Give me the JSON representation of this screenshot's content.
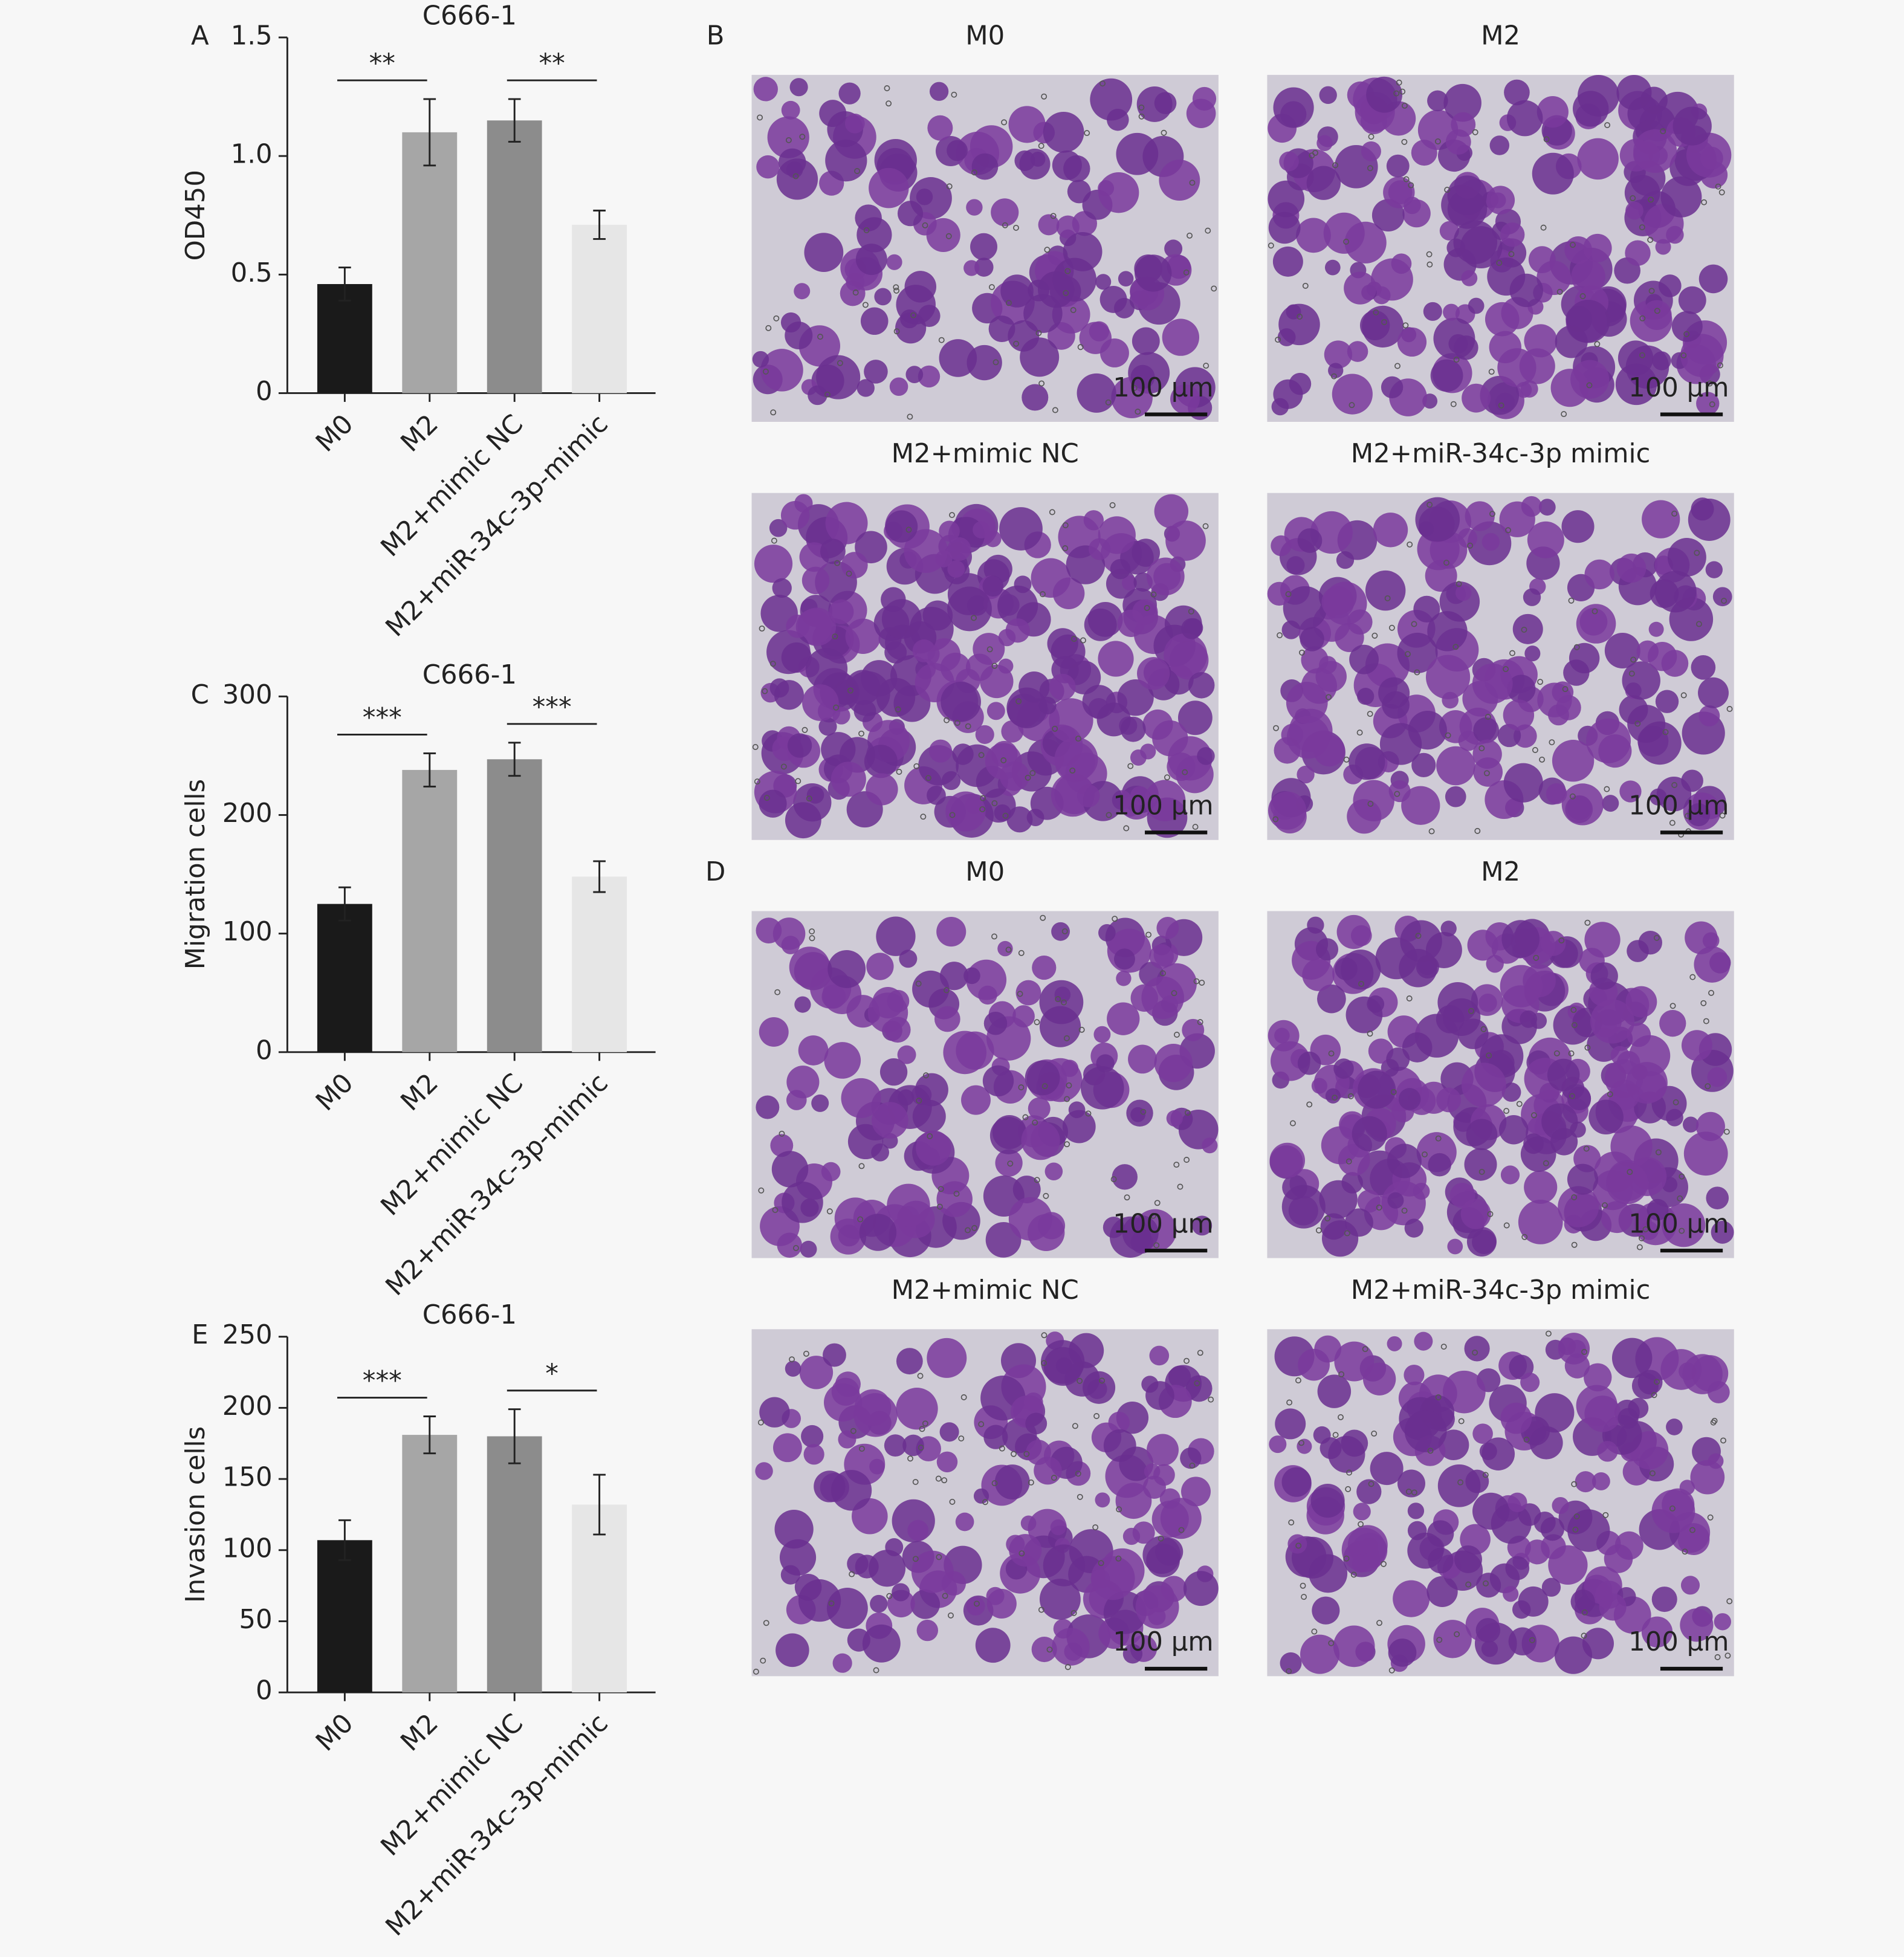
{
  "chart_data": [
    {
      "type": "bar",
      "panel_label": "A",
      "title": "C666-1",
      "y_label": "OD450",
      "categories": [
        "M0",
        "M2",
        "M2+mimic NC",
        "M2+miR-34c-3p-mimic"
      ],
      "values": [
        0.46,
        1.1,
        1.15,
        0.71
      ],
      "errors": [
        0.07,
        0.14,
        0.09,
        0.06
      ],
      "colors": [
        "#1a1a1a",
        "#a6a6a6",
        "#8c8c8c",
        "#e6e6e6"
      ],
      "ylim": [
        0,
        1.5
      ],
      "yticks": [
        0,
        0.5,
        {
          "value": 1,
          "label": "1.0"
        },
        1.5
      ],
      "annotations": [
        {
          "text": "**",
          "between": [
            "M0",
            "M2"
          ]
        },
        {
          "text": "**",
          "between": [
            "M2+mimic NC",
            "M2+miR-34c-3p-mimic"
          ]
        }
      ]
    },
    {
      "type": "bar",
      "panel_label": "C",
      "title": "C666-1",
      "y_label": "Migration cells",
      "categories": [
        "M0",
        "M2",
        "M2+mimic NC",
        "M2+miR-34c-3p-mimic"
      ],
      "values": [
        125,
        238,
        247,
        148
      ],
      "errors": [
        14,
        14,
        14,
        13
      ],
      "colors": [
        "#1a1a1a",
        "#a6a6a6",
        "#8c8c8c",
        "#e6e6e6"
      ],
      "ylim": [
        0,
        300
      ],
      "yticks": [
        0,
        100,
        200,
        300
      ],
      "annotations": [
        {
          "text": "***",
          "between": [
            "M0",
            "M2"
          ]
        },
        {
          "text": "***",
          "between": [
            "M2+mimic NC",
            "M2+miR-34c-3p-mimic"
          ]
        }
      ]
    },
    {
      "type": "bar",
      "panel_label": "E",
      "title": "C666-1",
      "y_label": "Invasion cells",
      "categories": [
        "M0",
        "M2",
        "M2+mimic NC",
        "M2+miR-34c-3p-mimic"
      ],
      "values": [
        107,
        181,
        180,
        132
      ],
      "errors": [
        14,
        13,
        19,
        21
      ],
      "colors": [
        "#1a1a1a",
        "#a6a6a6",
        "#8c8c8c",
        "#e6e6e6"
      ],
      "ylim": [
        0,
        250
      ],
      "yticks": [
        0,
        50,
        100,
        150,
        200,
        250
      ],
      "annotations": [
        {
          "text": "***",
          "between": [
            "M0",
            "M2"
          ]
        },
        {
          "text": "*",
          "between": [
            "M2+mimic NC",
            "M2+miR-34c-3p-mimic"
          ]
        }
      ]
    }
  ],
  "image_panels": [
    {
      "label": "B",
      "images": [
        {
          "title": "M0",
          "scale_bar": "100 µm"
        },
        {
          "title": "M2",
          "scale_bar": "100 µm"
        },
        {
          "title": "M2+mimic NC",
          "scale_bar": "100 µm"
        },
        {
          "title": "M2+miR-34c-3p mimic",
          "scale_bar": "100 µm"
        }
      ]
    },
    {
      "label": "D",
      "images": [
        {
          "title": "M0",
          "scale_bar": "100 µm"
        },
        {
          "title": "M2",
          "scale_bar": "100 µm"
        },
        {
          "title": "M2+mimic NC",
          "scale_bar": "100 µm"
        },
        {
          "title": "M2+miR-34c-3p mimic",
          "scale_bar": "100 µm"
        }
      ]
    }
  ]
}
